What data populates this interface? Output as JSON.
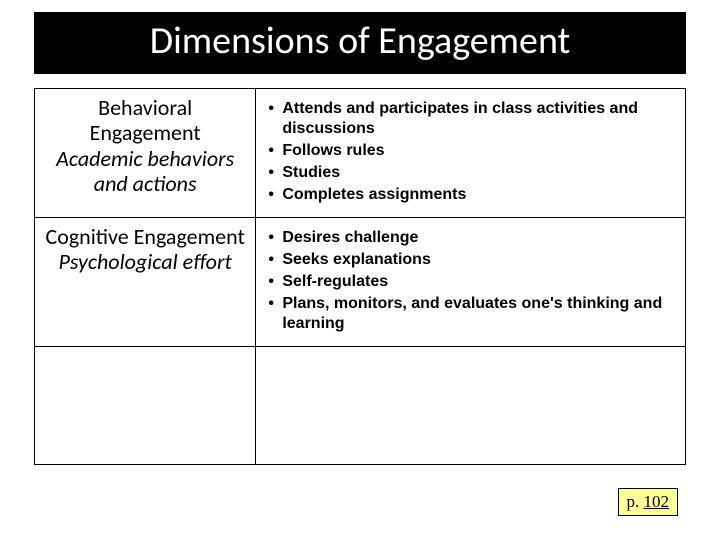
{
  "title": "Dimensions of Engagement",
  "rows": [
    {
      "title": "Behavioral Engagement",
      "subtitle": "Academic behaviors and actions",
      "bullets": [
        "Attends and participates in class activities and discussions",
        "Follows rules",
        "Studies",
        "Completes assignments"
      ]
    },
    {
      "title": "Cognitive Engagement",
      "subtitle": "Psychological effort",
      "bullets": [
        "Desires challenge",
        "Seeks explanations",
        "Self-regulates",
        "Plans, monitors, and evaluates one's thinking and learning"
      ]
    }
  ],
  "page_ref_prefix": "p. ",
  "page_ref_num": "102",
  "colors": {
    "title_bg": "#000000",
    "title_fg": "#ffffff",
    "border": "#000000",
    "badge_bg": "#ffff99",
    "slide_bg": "#ffffff"
  }
}
